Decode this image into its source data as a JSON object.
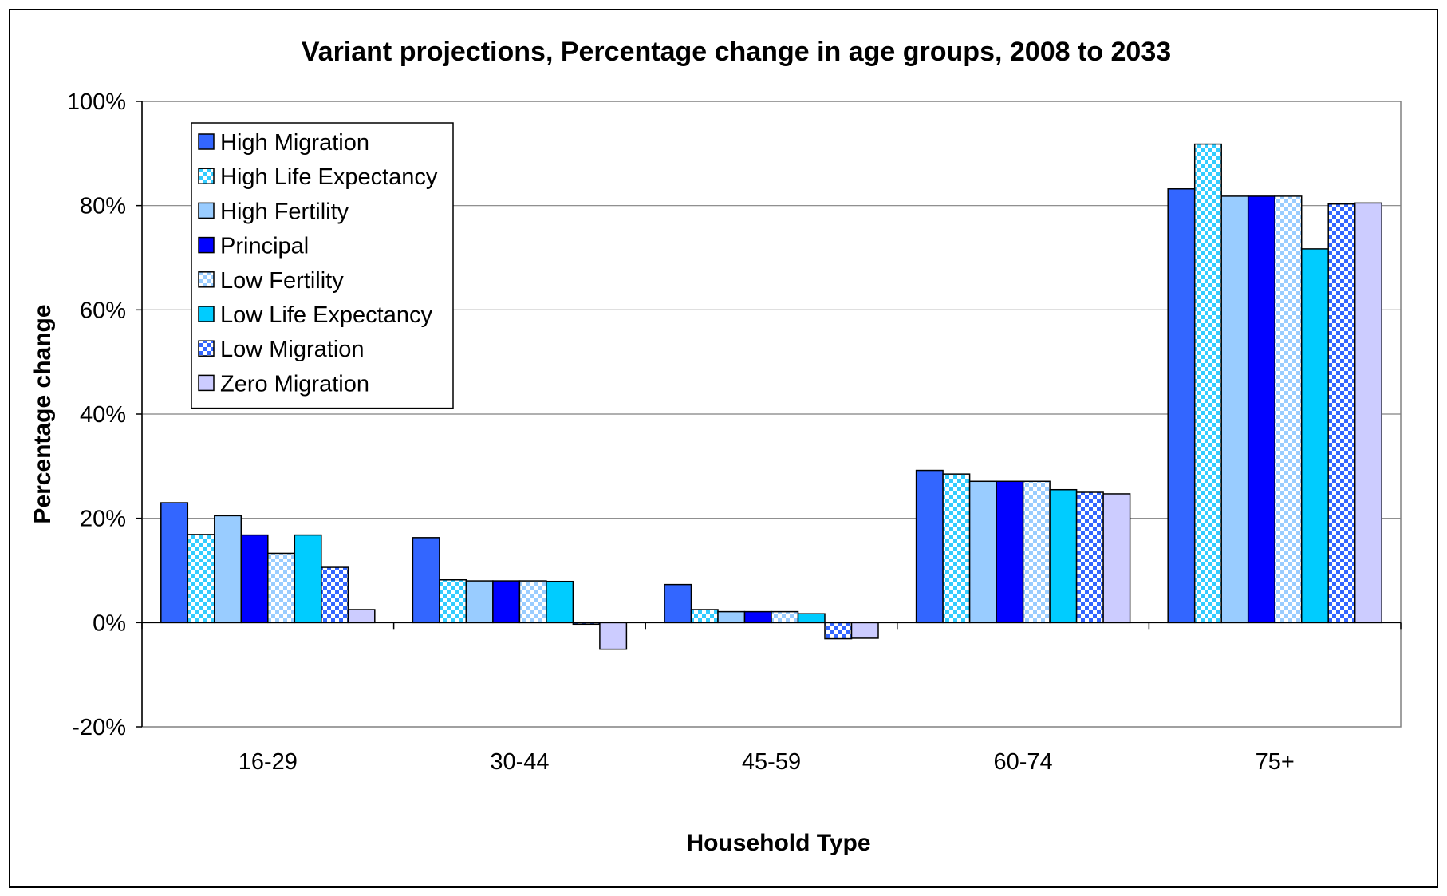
{
  "chart_data": {
    "type": "bar",
    "title": "Variant projections,  Percentage change in age groups, 2008 to 2033",
    "xlabel": "Household Type",
    "ylabel": "Percentage change",
    "categories": [
      "16-29",
      "30-44",
      "45-59",
      "60-74",
      "75+"
    ],
    "ylim": [
      -20,
      100
    ],
    "yticks": [
      "-20%",
      "0%",
      "20%",
      "40%",
      "60%",
      "80%",
      "100%"
    ],
    "grid": true,
    "legend_position": "top-left",
    "series": [
      {
        "name": "High Migration",
        "values": [
          23,
          16.3,
          7.3,
          29.2,
          83.2
        ],
        "color": "#3366ff",
        "pattern": "solid"
      },
      {
        "name": "High Life Expectancy",
        "values": [
          16.9,
          8.2,
          2.5,
          28.5,
          91.8
        ],
        "color": "#33ccff",
        "pattern": "check"
      },
      {
        "name": "High Fertility",
        "values": [
          20.5,
          8,
          2.1,
          27.1,
          81.8
        ],
        "color": "#99ccff",
        "pattern": "solid"
      },
      {
        "name": "Principal",
        "values": [
          16.8,
          8,
          2.1,
          27.1,
          81.8
        ],
        "color": "#0000ff",
        "pattern": "solid"
      },
      {
        "name": "Low Fertility",
        "values": [
          13.3,
          8,
          2.1,
          27.1,
          81.8
        ],
        "color": "#99ccff",
        "pattern": "check"
      },
      {
        "name": "Low Life Expectancy",
        "values": [
          16.8,
          7.9,
          1.7,
          25.5,
          71.7
        ],
        "color": "#00ccff",
        "pattern": "solid"
      },
      {
        "name": "Low Migration",
        "values": [
          10.6,
          -0.3,
          -3.1,
          25,
          80.3
        ],
        "color": "#3366ff",
        "pattern": "check"
      },
      {
        "name": "Zero Migration",
        "values": [
          2.5,
          -5.1,
          -3,
          24.7,
          80.5
        ],
        "color": "#ccccff",
        "pattern": "solid"
      }
    ]
  }
}
